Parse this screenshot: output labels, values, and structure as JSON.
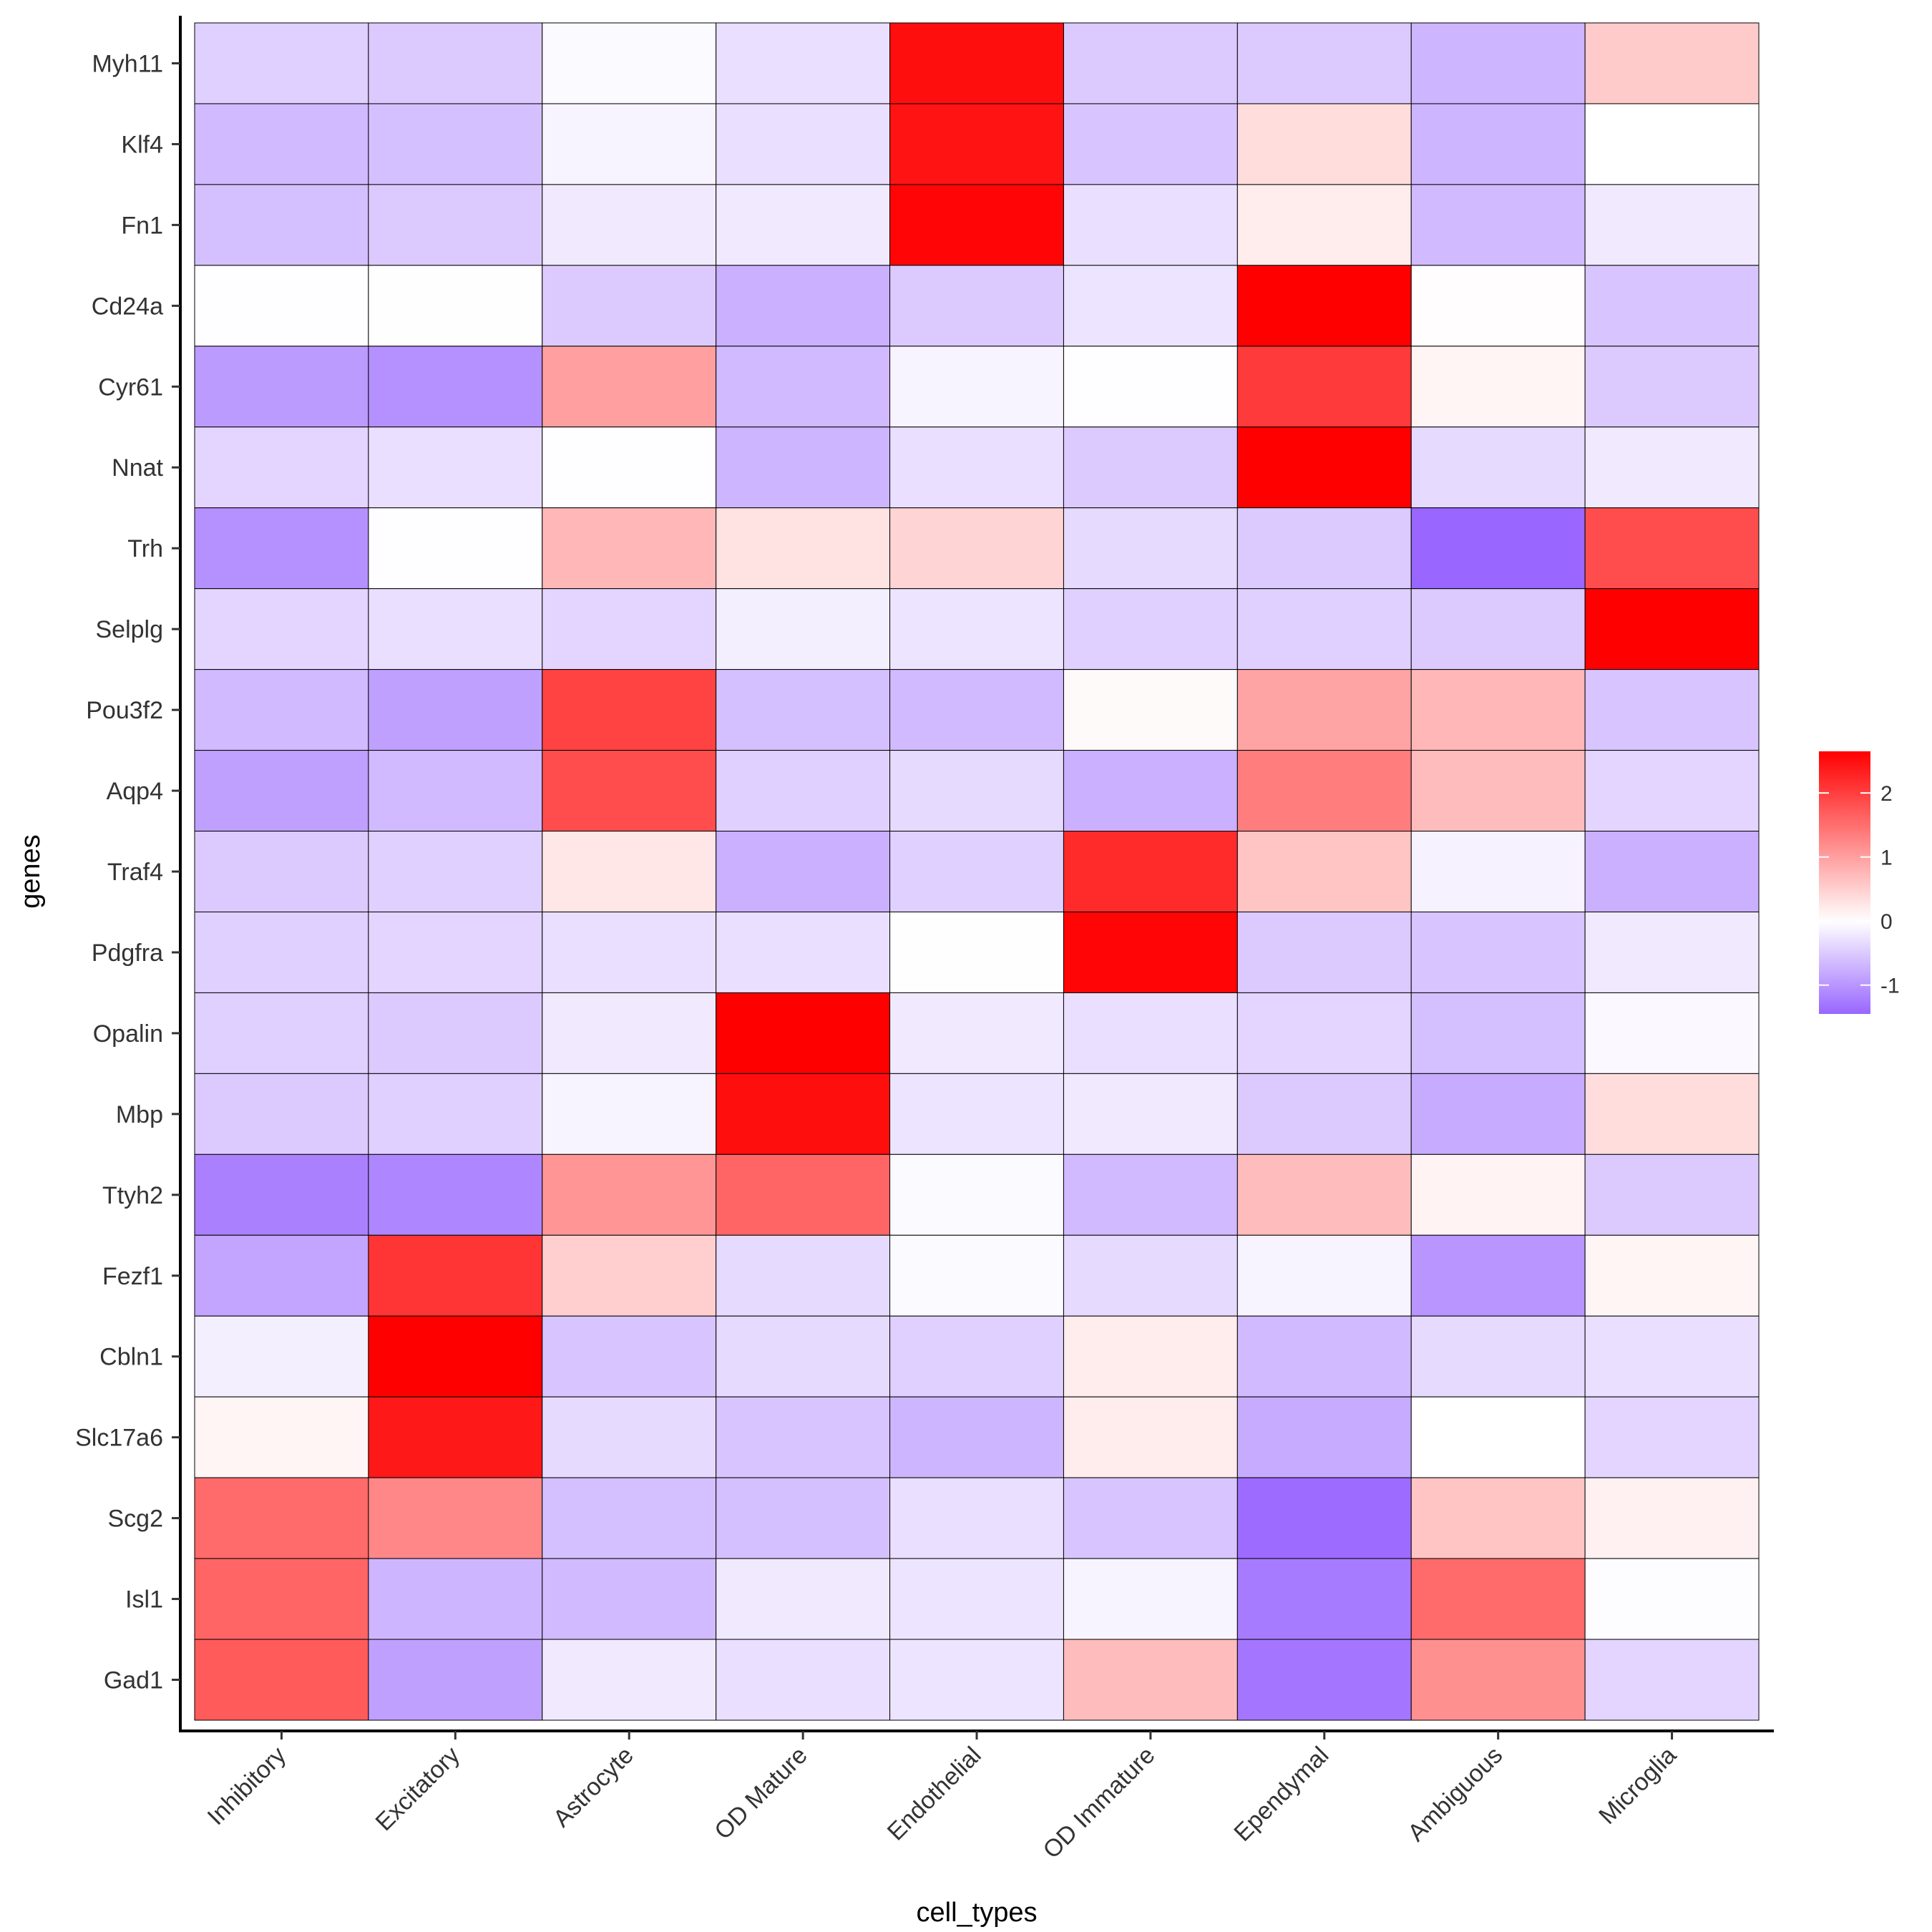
{
  "chart_data": {
    "type": "heatmap",
    "xlabel": "cell_types",
    "ylabel": "genes",
    "x": [
      "Inhibitory",
      "Excitatory",
      "Astrocyte",
      "OD Mature",
      "Endothelial",
      "OD Immature",
      "Ependymal",
      "Ambiguous",
      "Microglia"
    ],
    "y": [
      "Myh11",
      "Klf4",
      "Fn1",
      "Cd24a",
      "Cyr61",
      "Nnat",
      "Trh",
      "Selplg",
      "Pou3f2",
      "Aqp4",
      "Traf4",
      "Pdgfra",
      "Opalin",
      "Mbp",
      "Ttyh2",
      "Fezf1",
      "Cbln1",
      "Slc17a6",
      "Scg2",
      "Isl1",
      "Gad1"
    ],
    "values": [
      [
        -0.45,
        -0.5,
        -0.05,
        -0.3,
        2.5,
        -0.5,
        -0.5,
        -0.7,
        0.55
      ],
      [
        -0.65,
        -0.6,
        -0.1,
        -0.3,
        2.45,
        -0.55,
        0.35,
        -0.7,
        0.0
      ],
      [
        -0.6,
        -0.5,
        -0.2,
        -0.2,
        2.6,
        -0.3,
        0.2,
        -0.65,
        -0.2
      ],
      [
        -0.02,
        -0.01,
        -0.5,
        -0.75,
        -0.5,
        -0.25,
        2.65,
        0.02,
        -0.55
      ],
      [
        -0.95,
        -1.05,
        1.0,
        -0.65,
        -0.1,
        -0.02,
        2.05,
        0.1,
        -0.5
      ],
      [
        -0.4,
        -0.3,
        -0.02,
        -0.7,
        -0.3,
        -0.5,
        2.65,
        -0.35,
        -0.2
      ],
      [
        -1.05,
        -0.02,
        0.75,
        0.3,
        0.45,
        -0.35,
        -0.5,
        -1.45,
        1.85
      ],
      [
        -0.4,
        -0.3,
        -0.4,
        -0.15,
        -0.25,
        -0.45,
        -0.45,
        -0.5,
        2.65
      ],
      [
        -0.65,
        -0.9,
        1.95,
        -0.6,
        -0.65,
        0.05,
        0.95,
        0.75,
        -0.55
      ],
      [
        -0.9,
        -0.65,
        1.85,
        -0.45,
        -0.35,
        -0.75,
        1.35,
        0.7,
        -0.4
      ],
      [
        -0.5,
        -0.45,
        0.25,
        -0.75,
        -0.45,
        2.2,
        0.6,
        -0.12,
        -0.75
      ],
      [
        -0.45,
        -0.4,
        -0.3,
        -0.3,
        0.01,
        2.6,
        -0.5,
        -0.55,
        -0.2
      ],
      [
        -0.45,
        -0.5,
        -0.2,
        2.65,
        -0.2,
        -0.3,
        -0.4,
        -0.6,
        -0.06
      ],
      [
        -0.5,
        -0.45,
        -0.1,
        2.5,
        -0.25,
        -0.2,
        -0.5,
        -0.8,
        0.35
      ],
      [
        -1.2,
        -1.15,
        1.1,
        1.6,
        -0.05,
        -0.65,
        0.7,
        0.12,
        -0.5
      ],
      [
        -0.85,
        2.1,
        0.5,
        -0.35,
        -0.05,
        -0.35,
        -0.1,
        -1.0,
        0.1
      ],
      [
        -0.15,
        2.65,
        -0.55,
        -0.35,
        -0.45,
        0.2,
        -0.65,
        -0.35,
        -0.3
      ],
      [
        0.1,
        2.4,
        -0.35,
        -0.55,
        -0.7,
        0.2,
        -0.8,
        0.0,
        -0.4
      ],
      [
        1.55,
        1.25,
        -0.6,
        -0.6,
        -0.3,
        -0.55,
        -1.4,
        0.6,
        0.15
      ],
      [
        1.6,
        -0.7,
        -0.65,
        -0.2,
        -0.25,
        -0.1,
        -1.25,
        1.55,
        -0.03
      ],
      [
        1.7,
        -0.9,
        -0.2,
        -0.3,
        -0.25,
        0.7,
        -1.3,
        1.15,
        -0.4
      ]
    ],
    "colorbar": {
      "ticks": [
        "2",
        "1",
        "0",
        "-1"
      ],
      "tick_values": [
        2,
        1,
        0,
        -1
      ],
      "range": [
        -1.45,
        2.65
      ],
      "low_color": "#9966ff",
      "mid_color": "#ffffff",
      "high_color": "#ff0000"
    }
  }
}
